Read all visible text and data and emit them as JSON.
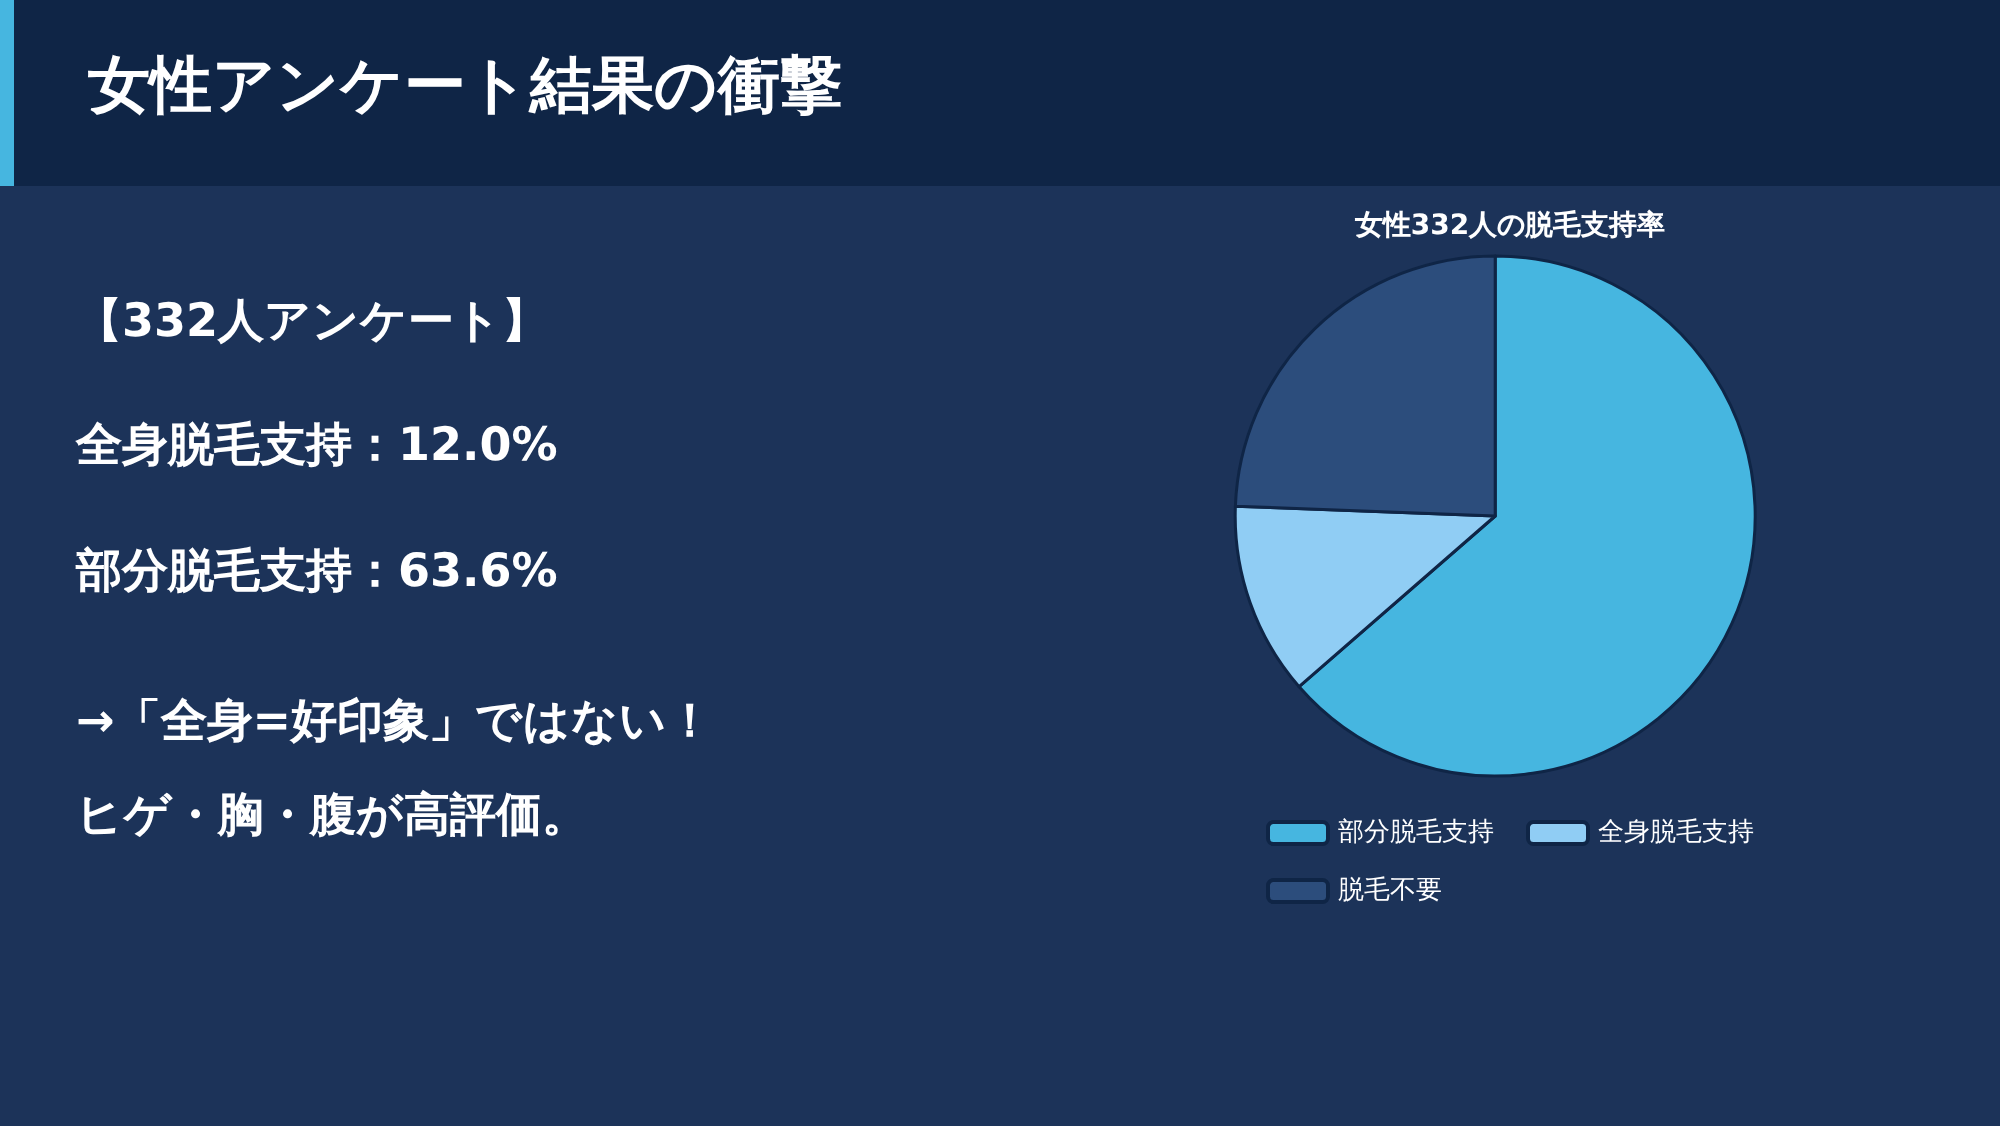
{
  "chart_data": [
    {
      "type": "other",
      "title": "女性アンケート結果の衝撃",
      "annotations": [
        "【332人アンケート】",
        "全身脱毛支持：12.0%",
        "部分脱毛支持：63.6%",
        "→「全身=好印象」ではない！",
        "ヒゲ・胸・腹が高評価。"
      ]
    },
    {
      "type": "pie",
      "title": "女性332人の脱毛支持率",
      "categories": [
        "部分脱毛支持",
        "全身脱毛支持",
        "脱毛不要"
      ],
      "values": [
        63.6,
        12.0,
        24.4
      ],
      "colors": [
        "#46b6e0",
        "#90cdf4",
        "#2c4d7c"
      ],
      "legend": "bottom"
    }
  ]
}
